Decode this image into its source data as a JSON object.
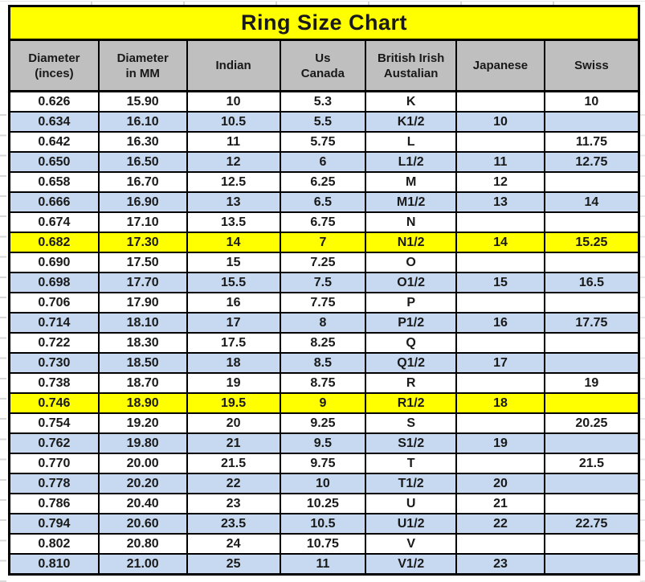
{
  "colors": {
    "title_bg": "#FFFF00",
    "header_bg": "#BFBFBF",
    "alt_row_bg": "#C6D9F0",
    "highlight_row_bg": "#FFFF00",
    "border": "#000000",
    "text": "#191919"
  },
  "chart_data": {
    "type": "table",
    "title": "Ring Size Chart",
    "columns": [
      "Diameter (inces)",
      "Diameter in MM",
      "Indian",
      "Us Canada",
      "British Irish Austalian",
      "Japanese",
      "Swiss"
    ],
    "header_lines": [
      [
        "Diameter",
        "(inces)"
      ],
      [
        "Diameter",
        "in MM"
      ],
      [
        "Indian"
      ],
      [
        "Us",
        "Canada"
      ],
      [
        "British Irish",
        "Austalian"
      ],
      [
        "Japanese"
      ],
      [
        "Swiss"
      ]
    ],
    "rows": [
      {
        "style": "white",
        "cells": [
          "0.626",
          "15.90",
          "10",
          "5.3",
          "K",
          "",
          "10"
        ]
      },
      {
        "style": "blue",
        "cells": [
          "0.634",
          "16.10",
          "10.5",
          "5.5",
          "K1/2",
          "10",
          ""
        ]
      },
      {
        "style": "white",
        "cells": [
          "0.642",
          "16.30",
          "11",
          "5.75",
          "L",
          "",
          "11.75"
        ]
      },
      {
        "style": "blue",
        "cells": [
          "0.650",
          "16.50",
          "12",
          "6",
          "L1/2",
          "11",
          "12.75"
        ]
      },
      {
        "style": "white",
        "cells": [
          "0.658",
          "16.70",
          "12.5",
          "6.25",
          "M",
          "12",
          ""
        ]
      },
      {
        "style": "blue",
        "cells": [
          "0.666",
          "16.90",
          "13",
          "6.5",
          "M1/2",
          "13",
          "14"
        ]
      },
      {
        "style": "white",
        "cells": [
          "0.674",
          "17.10",
          "13.5",
          "6.75",
          "N",
          "",
          ""
        ]
      },
      {
        "style": "yellow",
        "cells": [
          "0.682",
          "17.30",
          "14",
          "7",
          "N1/2",
          "14",
          "15.25"
        ]
      },
      {
        "style": "white",
        "cells": [
          "0.690",
          "17.50",
          "15",
          "7.25",
          "O",
          "",
          ""
        ]
      },
      {
        "style": "blue",
        "cells": [
          "0.698",
          "17.70",
          "15.5",
          "7.5",
          "O1/2",
          "15",
          "16.5"
        ]
      },
      {
        "style": "white",
        "cells": [
          "0.706",
          "17.90",
          "16",
          "7.75",
          "P",
          "",
          ""
        ]
      },
      {
        "style": "blue",
        "cells": [
          "0.714",
          "18.10",
          "17",
          "8",
          "P1/2",
          "16",
          "17.75"
        ]
      },
      {
        "style": "white",
        "cells": [
          "0.722",
          "18.30",
          "17.5",
          "8.25",
          "Q",
          "",
          ""
        ]
      },
      {
        "style": "blue",
        "cells": [
          "0.730",
          "18.50",
          "18",
          "8.5",
          "Q1/2",
          "17",
          ""
        ]
      },
      {
        "style": "white",
        "cells": [
          "0.738",
          "18.70",
          "19",
          "8.75",
          "R",
          "",
          "19"
        ]
      },
      {
        "style": "yellow",
        "cells": [
          "0.746",
          "18.90",
          "19.5",
          "9",
          "R1/2",
          "18",
          ""
        ]
      },
      {
        "style": "white",
        "cells": [
          "0.754",
          "19.20",
          "20",
          "9.25",
          "S",
          "",
          "20.25"
        ]
      },
      {
        "style": "blue",
        "cells": [
          "0.762",
          "19.80",
          "21",
          "9.5",
          "S1/2",
          "19",
          ""
        ]
      },
      {
        "style": "white",
        "cells": [
          "0.770",
          "20.00",
          "21.5",
          "9.75",
          "T",
          "",
          "21.5"
        ]
      },
      {
        "style": "blue",
        "cells": [
          "0.778",
          "20.20",
          "22",
          "10",
          "T1/2",
          "20",
          ""
        ]
      },
      {
        "style": "white",
        "cells": [
          "0.786",
          "20.40",
          "23",
          "10.25",
          "U",
          "21",
          ""
        ]
      },
      {
        "style": "blue",
        "cells": [
          "0.794",
          "20.60",
          "23.5",
          "10.5",
          "U1/2",
          "22",
          "22.75"
        ]
      },
      {
        "style": "white",
        "cells": [
          "0.802",
          "20.80",
          "24",
          "10.75",
          "V",
          "",
          ""
        ]
      },
      {
        "style": "blue",
        "cells": [
          "0.810",
          "21.00",
          "25",
          "11",
          "V1/2",
          "23",
          ""
        ]
      }
    ]
  }
}
